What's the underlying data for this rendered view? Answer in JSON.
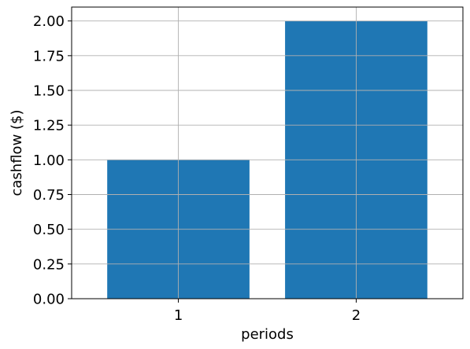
{
  "chart_data": {
    "type": "bar",
    "categories": [
      "1",
      "2"
    ],
    "values": [
      1.0,
      2.0
    ],
    "title": "",
    "xlabel": "periods",
    "ylabel": "cashflow ($)",
    "ylim": [
      0,
      2.1
    ],
    "yticks": [
      "0.00",
      "0.25",
      "0.50",
      "0.75",
      "1.00",
      "1.25",
      "1.50",
      "1.75",
      "2.00"
    ],
    "grid": true,
    "legend": "none",
    "colors": {
      "bar": "#1f77b4",
      "grid": "#b0b0b0",
      "axis": "#000000"
    }
  }
}
